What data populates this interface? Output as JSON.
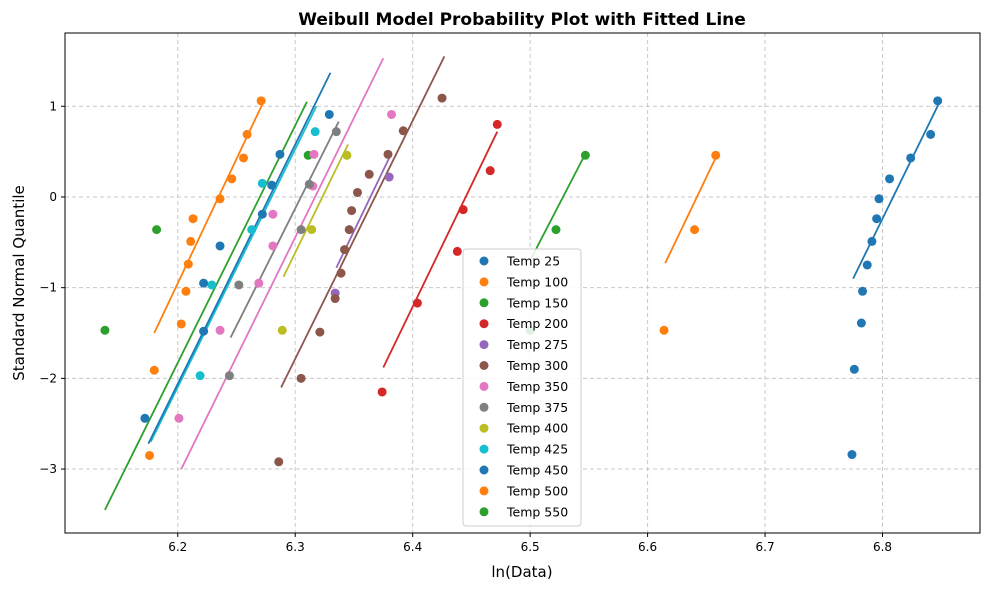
{
  "chart_data": {
    "type": "scatter",
    "title": "Weibull Model Probability Plot with Fitted Line",
    "xlabel": "ln(Data)",
    "ylabel": "Standard Normal Quantile",
    "xlim": [
      6.104,
      6.883
    ],
    "ylim": [
      -3.705,
      1.808
    ],
    "xticks": [
      6.2,
      6.3,
      6.4,
      6.5,
      6.6,
      6.7,
      6.8
    ],
    "xtick_labels": [
      "6.2",
      "6.3",
      "6.4",
      "6.5",
      "6.6",
      "6.7",
      "6.8"
    ],
    "yticks": [
      1,
      0,
      -1,
      -2,
      -3
    ],
    "ytick_labels": [
      "1",
      "0",
      "−1",
      "−2",
      "−3"
    ],
    "grid": true,
    "legend_placement": "lower-center",
    "series": [
      {
        "name": "Temp 25",
        "color": "#1f77b4",
        "x": [
          6.774,
          6.776,
          6.782,
          6.783,
          6.787,
          6.791,
          6.795,
          6.797,
          6.806,
          6.824,
          6.841,
          6.847
        ],
        "y": [
          -2.84,
          -1.9,
          -1.39,
          -1.04,
          -0.75,
          -0.49,
          -0.24,
          -0.02,
          0.2,
          0.43,
          0.69,
          1.06
        ],
        "fit": [
          [
            6.775,
            -0.9
          ],
          [
            6.848,
            1.03
          ]
        ]
      },
      {
        "name": "Temp 100",
        "color": "#ff7f0e",
        "x": [
          6.176,
          6.18,
          6.203,
          6.207,
          6.209,
          6.211,
          6.213,
          6.236,
          6.246,
          6.256,
          6.259,
          6.271
        ],
        "y": [
          -2.85,
          -1.91,
          -1.4,
          -1.04,
          -0.74,
          -0.49,
          -0.24,
          -0.02,
          0.2,
          0.43,
          0.69,
          1.06
        ],
        "fit": [
          [
            6.18,
            -1.5
          ],
          [
            6.273,
            1.05
          ]
        ]
      },
      {
        "name": "Temp 150",
        "color": "#2ca02c",
        "x": [
          6.138,
          6.182,
          6.311
        ],
        "y": [
          -1.47,
          -0.36,
          0.46
        ],
        "fit": [
          [
            6.138,
            -3.45
          ],
          [
            6.31,
            1.05
          ]
        ]
      },
      {
        "name": "Temp 200",
        "color": "#d62728",
        "x": [
          6.374,
          6.404,
          6.438,
          6.443,
          6.466,
          6.472
        ],
        "y": [
          -2.15,
          -1.17,
          -0.6,
          -0.14,
          0.29,
          0.8
        ],
        "fit": [
          [
            6.375,
            -1.88
          ],
          [
            6.472,
            0.72
          ]
        ]
      },
      {
        "name": "Temp 275",
        "color": "#9467bd",
        "x": [
          6.334,
          6.38
        ],
        "y": [
          -1.06,
          0.22
        ],
        "fit": [
          [
            6.335,
            -0.78
          ],
          [
            6.38,
            0.43
          ]
        ]
      },
      {
        "name": "Temp 300",
        "color": "#8c564b",
        "x": [
          6.286,
          6.305,
          6.321,
          6.334,
          6.339,
          6.342,
          6.346,
          6.348,
          6.353,
          6.363,
          6.379,
          6.392,
          6.425
        ],
        "y": [
          -2.92,
          -2.0,
          -1.49,
          -1.12,
          -0.84,
          -0.58,
          -0.36,
          -0.15,
          0.05,
          0.25,
          0.47,
          0.73,
          1.09
        ],
        "fit": [
          [
            6.288,
            -2.1
          ],
          [
            6.427,
            1.55
          ]
        ]
      },
      {
        "name": "Temp 350",
        "color": "#e377c2",
        "x": [
          6.201,
          6.236,
          6.269,
          6.281,
          6.281,
          6.315,
          6.316,
          6.382
        ],
        "y": [
          -2.44,
          -1.47,
          -0.95,
          -0.54,
          -0.19,
          0.12,
          0.47,
          0.91
        ],
        "fit": [
          [
            6.203,
            -3.0
          ],
          [
            6.375,
            1.53
          ]
        ]
      },
      {
        "name": "Temp 375",
        "color": "#7f7f7f",
        "x": [
          6.244,
          6.252,
          6.305,
          6.312,
          6.335
        ],
        "y": [
          -1.97,
          -0.97,
          -0.36,
          0.14,
          0.72
        ],
        "fit": [
          [
            6.245,
            -1.55
          ],
          [
            6.337,
            0.83
          ]
        ]
      },
      {
        "name": "Temp 400",
        "color": "#bcbd22",
        "x": [
          6.289,
          6.314,
          6.344
        ],
        "y": [
          -1.47,
          -0.36,
          0.46
        ],
        "fit": [
          [
            6.29,
            -0.88
          ],
          [
            6.345,
            0.58
          ]
        ]
      },
      {
        "name": "Temp 425",
        "color": "#17becf",
        "x": [
          6.219,
          6.229,
          6.263,
          6.272,
          6.317
        ],
        "y": [
          -1.97,
          -0.97,
          -0.36,
          0.15,
          0.72
        ],
        "fit": [
          [
            6.177,
            -2.7
          ],
          [
            6.318,
            1.0
          ]
        ]
      },
      {
        "name": "Temp 450",
        "color": "#1f77b4",
        "x": [
          6.172,
          6.222,
          6.222,
          6.236,
          6.272,
          6.28,
          6.287,
          6.329
        ],
        "y": [
          -2.44,
          -1.48,
          -0.95,
          -0.54,
          -0.19,
          0.13,
          0.47,
          0.91
        ],
        "fit": [
          [
            6.175,
            -2.72
          ],
          [
            6.33,
            1.37
          ]
        ]
      },
      {
        "name": "Temp 500",
        "color": "#ff7f0e",
        "x": [
          6.614,
          6.64,
          6.658
        ],
        "y": [
          -1.47,
          -0.36,
          0.46
        ],
        "fit": [
          [
            6.615,
            -0.73
          ],
          [
            6.659,
            0.46
          ]
        ]
      },
      {
        "name": "Temp 550",
        "color": "#2ca02c",
        "x": [
          6.5,
          6.522,
          6.547
        ],
        "y": [
          -1.47,
          -0.36,
          0.46
        ],
        "fit": [
          [
            6.5,
            -0.7
          ],
          [
            6.548,
            0.5
          ]
        ]
      }
    ]
  }
}
